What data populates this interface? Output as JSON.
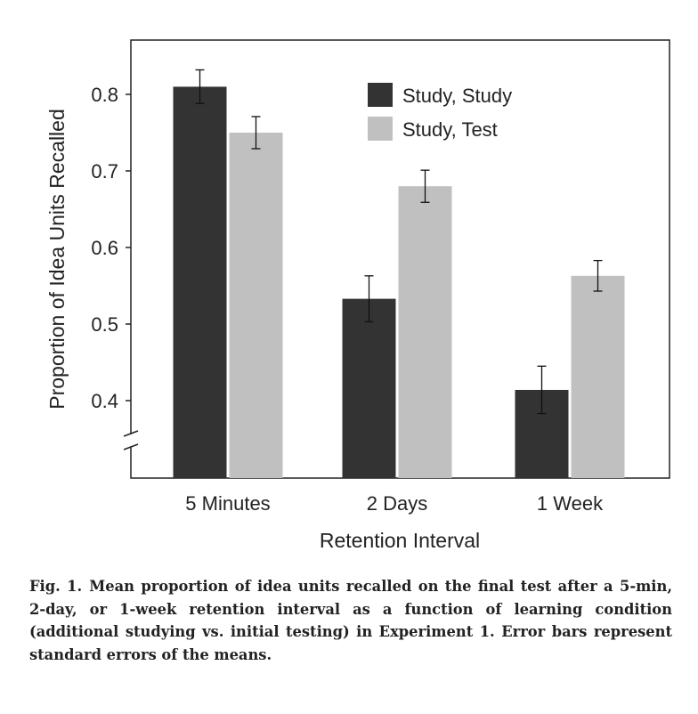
{
  "chart_data": {
    "type": "bar",
    "title": "",
    "xlabel": "Retention Interval",
    "ylabel": "Proportion of Idea Units Recalled",
    "categories": [
      "5 Minutes",
      "2 Days",
      "1 Week"
    ],
    "ylim": [
      0.3,
      0.87
    ],
    "yticks": [
      0.4,
      0.5,
      0.6,
      0.7,
      0.8
    ],
    "ytick_labels": [
      "0.4",
      "0.5",
      "0.6",
      "0.7",
      "0.8"
    ],
    "axis_break": true,
    "grid": false,
    "legend_position": "top-right",
    "series": [
      {
        "name": "Study, Study",
        "color": "#333333",
        "values": [
          0.81,
          0.533,
          0.414
        ],
        "errors": [
          0.022,
          0.03,
          0.031
        ]
      },
      {
        "name": "Study, Test",
        "color": "#c0c0c0",
        "values": [
          0.75,
          0.68,
          0.563
        ],
        "errors": [
          0.021,
          0.021,
          0.02
        ]
      }
    ]
  },
  "caption": {
    "label": "Fig. 1.",
    "text": "Mean proportion of idea units recalled on the final test after a 5-min, 2-day, or 1-week retention interval as a function of learning condition (additional studying vs. initial testing) in Experiment 1. Error bars represent standard errors of the means."
  }
}
